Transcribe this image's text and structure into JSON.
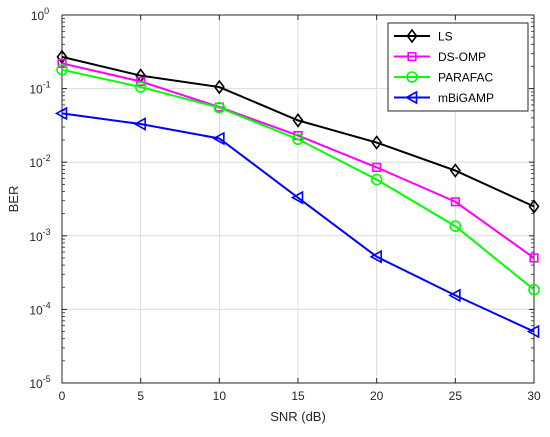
{
  "chart_data": {
    "type": "line",
    "title": "",
    "xlabel": "SNR (dB)",
    "ylabel": "BER",
    "x": [
      0,
      5,
      10,
      15,
      20,
      25,
      30
    ],
    "xlim": [
      0,
      30
    ],
    "ylim": [
      1e-05,
      1
    ],
    "yscale": "log",
    "grid": true,
    "legend_position": "top-right",
    "x_ticks": [
      "0",
      "5",
      "10",
      "15",
      "20",
      "25",
      "30"
    ],
    "y_ticks": [
      {
        "base": "10",
        "exp": "-5"
      },
      {
        "base": "10",
        "exp": "-4"
      },
      {
        "base": "10",
        "exp": "-3"
      },
      {
        "base": "10",
        "exp": "-2"
      },
      {
        "base": "10",
        "exp": "-1"
      },
      {
        "base": "10",
        "exp": "0"
      }
    ],
    "series": [
      {
        "name": "LS",
        "color": "#000000",
        "marker": "diamond",
        "values": [
          0.27,
          0.15,
          0.105,
          0.037,
          0.0185,
          0.0077,
          0.0025
        ]
      },
      {
        "name": "DS-OMP",
        "color": "#ff00ff",
        "marker": "square",
        "values": [
          0.22,
          0.125,
          0.056,
          0.023,
          0.0085,
          0.0029,
          0.0005
        ]
      },
      {
        "name": "PARAFAC",
        "color": "#00ff00",
        "marker": "circle",
        "values": [
          0.18,
          0.105,
          0.055,
          0.0205,
          0.0058,
          0.00135,
          0.000185
        ]
      },
      {
        "name": "mBiGAMP",
        "color": "#0000ff",
        "marker": "triangle-left",
        "values": [
          0.046,
          0.033,
          0.021,
          0.0033,
          0.00052,
          0.000155,
          5e-05
        ]
      }
    ]
  }
}
